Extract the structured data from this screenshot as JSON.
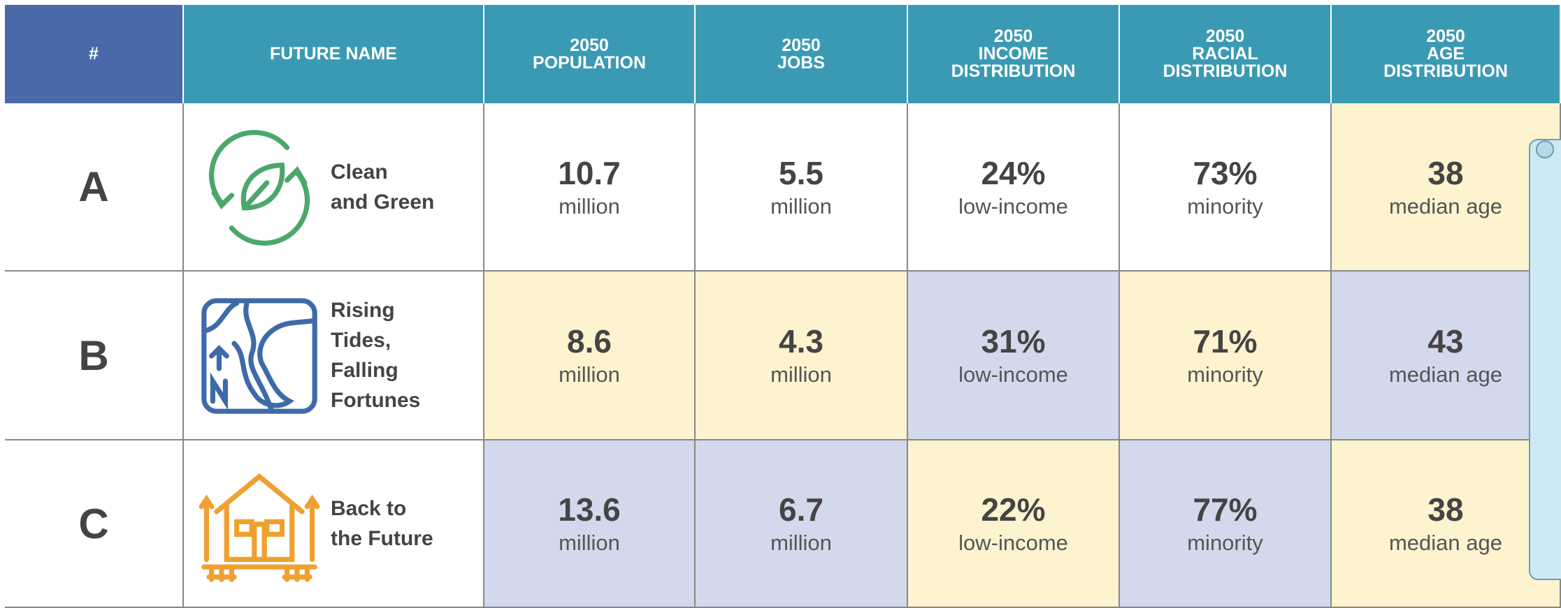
{
  "table": {
    "header": [
      [
        "#"
      ],
      [
        "FUTURE NAME"
      ],
      [
        "2050",
        "POPULATION"
      ],
      [
        "2050",
        "JOBS"
      ],
      [
        "2050",
        "INCOME",
        "DISTRIBUTION"
      ],
      [
        "2050",
        "RACIAL",
        "DISTRIBUTION"
      ],
      [
        "2050",
        "AGE",
        "DISTRIBUTION"
      ]
    ],
    "rows": [
      {
        "id": "A",
        "name": [
          "Clean",
          "and Green"
        ],
        "cells": [
          {
            "value": "10.7",
            "unit": "million"
          },
          {
            "value": "5.5",
            "unit": "million"
          },
          {
            "value": "24%",
            "unit": "low-income"
          },
          {
            "value": "73%",
            "unit": "minority"
          },
          {
            "value": "38",
            "unit": "median age"
          }
        ]
      },
      {
        "id": "B",
        "name": [
          "Rising",
          "Tides,",
          "Falling",
          "Fortunes"
        ],
        "cells": [
          {
            "value": "8.6",
            "unit": "million"
          },
          {
            "value": "4.3",
            "unit": "million"
          },
          {
            "value": "31%",
            "unit": "low-income"
          },
          {
            "value": "71%",
            "unit": "minority"
          },
          {
            "value": "43",
            "unit": "median age"
          }
        ]
      },
      {
        "id": "C",
        "name": [
          "Back to",
          "the Future"
        ],
        "cells": [
          {
            "value": "13.6",
            "unit": "million"
          },
          {
            "value": "6.7",
            "unit": "million"
          },
          {
            "value": "22%",
            "unit": "low-income"
          },
          {
            "value": "77%",
            "unit": "minority"
          },
          {
            "value": "38",
            "unit": "median age"
          }
        ]
      }
    ]
  }
}
